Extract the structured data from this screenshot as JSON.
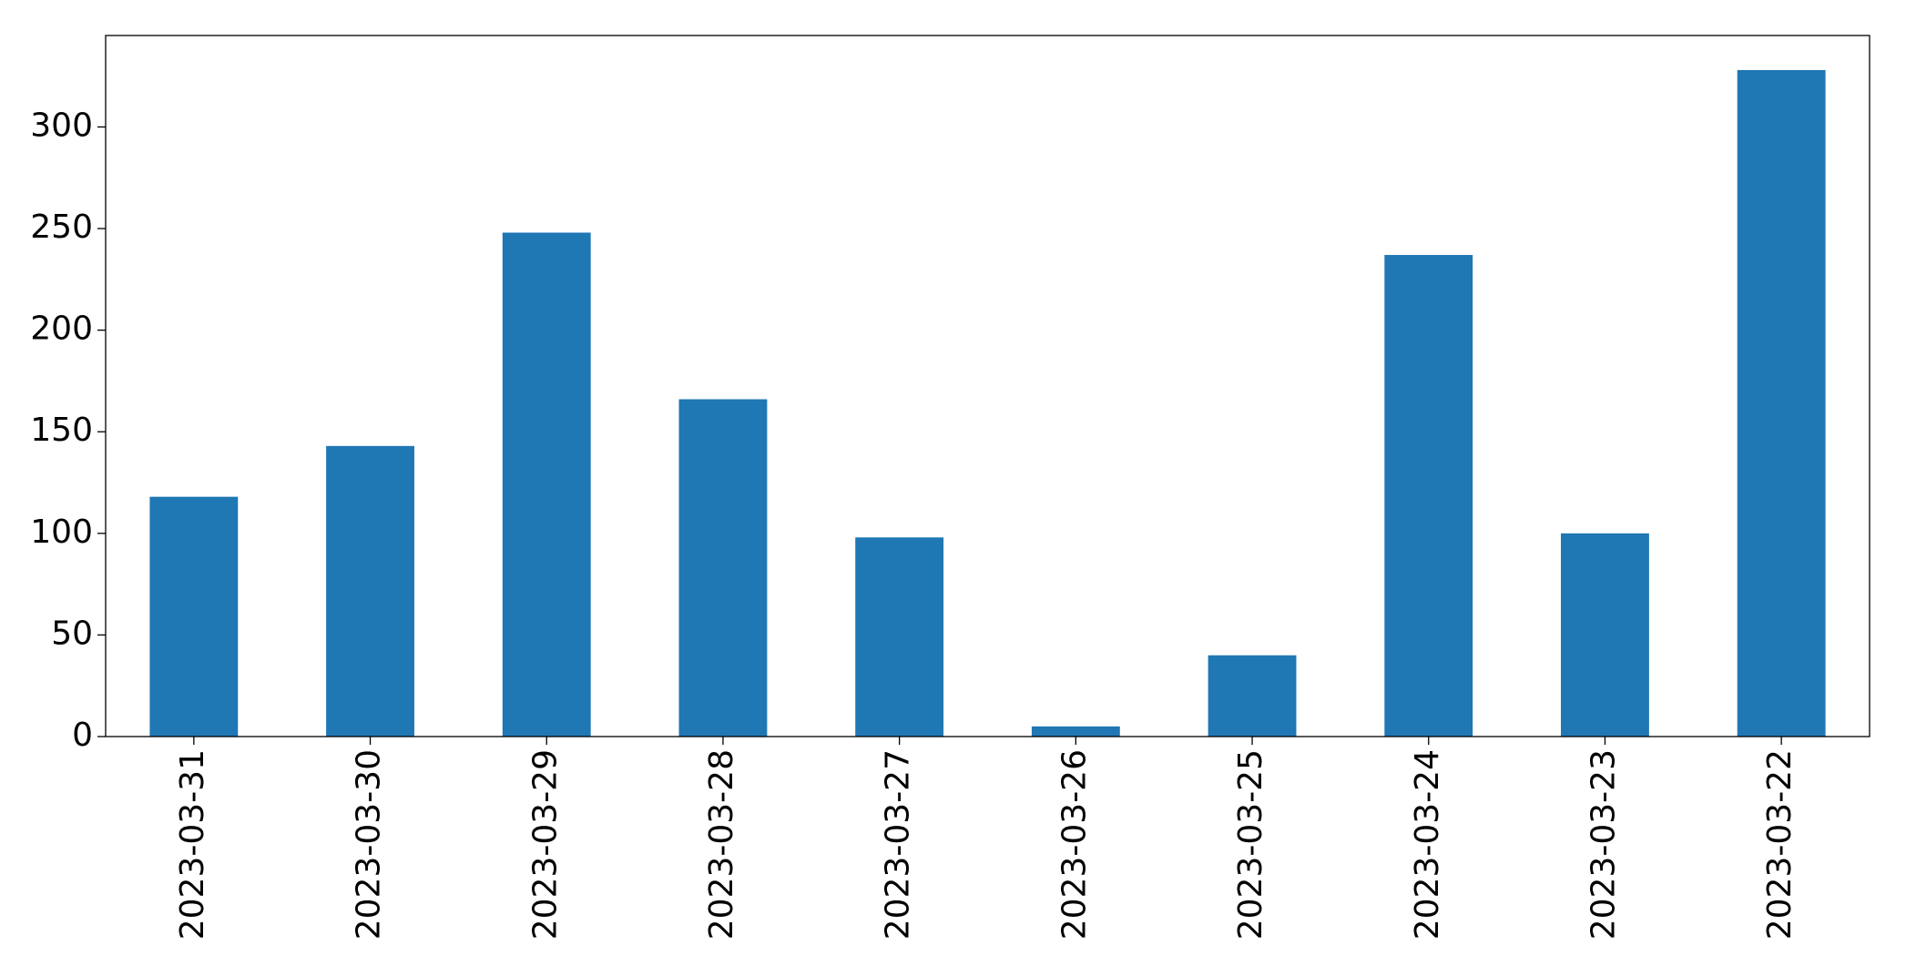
{
  "chart_data": {
    "type": "bar",
    "categories": [
      "2023-03-31",
      "2023-03-30",
      "2023-03-29",
      "2023-03-28",
      "2023-03-27",
      "2023-03-26",
      "2023-03-25",
      "2023-03-24",
      "2023-03-23",
      "2023-03-22"
    ],
    "values": [
      118,
      143,
      248,
      166,
      98,
      5,
      40,
      237,
      100,
      328
    ],
    "color": "#1f77b4",
    "ylim": [
      0,
      345
    ],
    "yticks": [
      0,
      50,
      100,
      150,
      200,
      250,
      300
    ],
    "grid": false
  }
}
